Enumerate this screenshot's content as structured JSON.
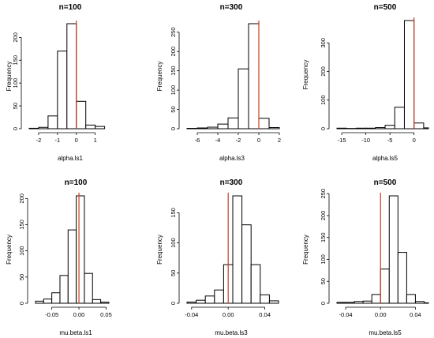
{
  "figure": {
    "ylabel": "Frequency",
    "bar_fill": "#ffffff",
    "bar_stroke": "#000000",
    "ref_line_color": "#c8401c"
  },
  "chart_data": [
    {
      "type": "bar",
      "title": "n=100",
      "xlabel": "alpha.ls1",
      "ylabel": "Frequency",
      "xlim": [
        -2.5,
        1.6
      ],
      "ylim": [
        0,
        230
      ],
      "vline": 0,
      "xticks": [
        -2,
        -1,
        0,
        1
      ],
      "yticks": [
        0,
        50,
        100,
        150,
        200
      ],
      "bins": [
        [
          -2.5,
          -2.0,
          1
        ],
        [
          -2.0,
          -1.5,
          3
        ],
        [
          -1.5,
          -1.0,
          28
        ],
        [
          -1.0,
          -0.5,
          170
        ],
        [
          -0.5,
          0.0,
          230
        ],
        [
          0.0,
          0.5,
          60
        ],
        [
          0.5,
          1.0,
          8
        ],
        [
          1.0,
          1.5,
          5
        ]
      ]
    },
    {
      "type": "bar",
      "title": "n=300",
      "xlabel": "alpha.ls3",
      "ylabel": "Frequency",
      "xlim": [
        -7,
        2
      ],
      "ylim": [
        0,
        272
      ],
      "vline": 0,
      "xticks": [
        -6,
        -4,
        -2,
        0,
        2
      ],
      "yticks": [
        0,
        50,
        100,
        150,
        200,
        250
      ],
      "bins": [
        [
          -7,
          -6,
          1
        ],
        [
          -6,
          -5,
          2
        ],
        [
          -5,
          -4,
          4
        ],
        [
          -4,
          -3,
          12
        ],
        [
          -3,
          -2,
          28
        ],
        [
          -2,
          -1,
          155
        ],
        [
          -1,
          0,
          272
        ],
        [
          0,
          1,
          27
        ],
        [
          1,
          2,
          3
        ]
      ]
    },
    {
      "type": "bar",
      "title": "n=500",
      "xlabel": "alpha.ls5",
      "ylabel": "Frequency",
      "xlim": [
        -16,
        3
      ],
      "ylim": [
        0,
        378
      ],
      "vline": 0,
      "xticks": [
        -15,
        -10,
        -5,
        0
      ],
      "yticks": [
        0,
        100,
        200,
        300
      ],
      "bins": [
        [
          -16,
          -14,
          2
        ],
        [
          -14,
          -12,
          1
        ],
        [
          -12,
          -10,
          2
        ],
        [
          -10,
          -8,
          2
        ],
        [
          -8,
          -6,
          4
        ],
        [
          -6,
          -4,
          12
        ],
        [
          -4,
          -2,
          75
        ],
        [
          -2,
          0,
          378
        ],
        [
          0,
          2,
          20
        ],
        [
          2,
          3,
          3
        ]
      ]
    },
    {
      "type": "bar",
      "title": "n=100",
      "xlabel": "mu.beta.ls1",
      "ylabel": "Frequency",
      "xlim": [
        -0.08,
        0.09
      ],
      "ylim": [
        0,
        205
      ],
      "vline": 0,
      "xticks": [
        -0.05,
        0.0,
        0.05
      ],
      "xtick_labels": [
        "-0.05",
        "0.00",
        "0.05"
      ],
      "yticks": [
        0,
        50,
        100,
        150,
        200
      ],
      "bins": [
        [
          -0.08,
          -0.065,
          4
        ],
        [
          -0.065,
          -0.05,
          8
        ],
        [
          -0.05,
          -0.035,
          20
        ],
        [
          -0.035,
          -0.02,
          53
        ],
        [
          -0.02,
          -0.005,
          140
        ],
        [
          -0.005,
          0.01,
          205
        ],
        [
          0.01,
          0.025,
          57
        ],
        [
          0.025,
          0.04,
          7
        ],
        [
          0.04,
          0.055,
          2
        ]
      ],
      "note": "approximate bins"
    },
    {
      "type": "bar",
      "title": "n=300",
      "xlabel": "mu.beta.ls3",
      "ylabel": "Frequency",
      "xlim": [
        -0.045,
        0.055
      ],
      "ylim": [
        0,
        178
      ],
      "vline": 0,
      "xticks": [
        -0.04,
        0.0,
        0.04
      ],
      "xtick_labels": [
        "-0.04",
        "0.00",
        "0.04"
      ],
      "yticks": [
        0,
        50,
        100,
        150
      ],
      "bins": [
        [
          -0.045,
          -0.035,
          2
        ],
        [
          -0.035,
          -0.025,
          5
        ],
        [
          -0.025,
          -0.015,
          12
        ],
        [
          -0.015,
          -0.005,
          22
        ],
        [
          -0.005,
          0.005,
          64
        ],
        [
          0.005,
          0.015,
          178
        ],
        [
          0.015,
          0.025,
          130
        ],
        [
          0.025,
          0.035,
          64
        ],
        [
          0.035,
          0.045,
          14
        ],
        [
          0.045,
          0.055,
          4
        ]
      ]
    },
    {
      "type": "bar",
      "title": "n=500",
      "xlabel": "mu.beta.ls5",
      "ylabel": "Frequency",
      "xlim": [
        -0.05,
        0.055
      ],
      "ylim": [
        0,
        245
      ],
      "vline": 0,
      "xticks": [
        -0.04,
        0.0,
        0.04
      ],
      "xtick_labels": [
        "-0.04",
        "0.00",
        "0.04"
      ],
      "yticks": [
        0,
        50,
        100,
        150,
        200,
        250
      ],
      "bins": [
        [
          -0.05,
          -0.04,
          2
        ],
        [
          -0.04,
          -0.03,
          2
        ],
        [
          -0.03,
          -0.02,
          4
        ],
        [
          -0.02,
          -0.01,
          5
        ],
        [
          -0.01,
          0.0,
          20
        ],
        [
          0.0,
          0.01,
          78
        ],
        [
          0.01,
          0.02,
          245
        ],
        [
          0.02,
          0.03,
          116
        ],
        [
          0.03,
          0.04,
          20
        ],
        [
          0.04,
          0.05,
          4
        ],
        [
          0.05,
          0.055,
          1
        ]
      ]
    }
  ]
}
